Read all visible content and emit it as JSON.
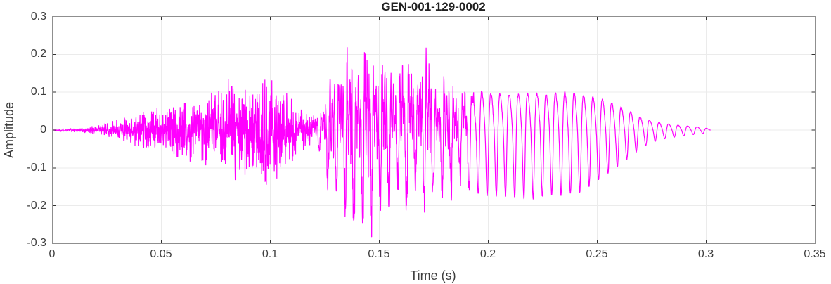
{
  "figure": {
    "background_color": "#ffffff"
  },
  "chart_data": {
    "type": "line",
    "title": "GEN-001-129-0002",
    "xlabel": "Time (s)",
    "ylabel": "Amplitude",
    "xlim": [
      0,
      0.35
    ],
    "ylim": [
      -0.3,
      0.3
    ],
    "xticks": [
      0,
      0.05,
      0.1,
      0.15,
      0.2,
      0.25,
      0.3,
      0.35
    ],
    "xtick_labels": [
      "0",
      "0.05",
      "0.1",
      "0.15",
      "0.2",
      "0.25",
      "0.3",
      "0.35"
    ],
    "yticks": [
      -0.3,
      -0.2,
      -0.1,
      0,
      0.1,
      0.2,
      0.3
    ],
    "ytick_labels": [
      "-0.3",
      "-0.2",
      "-0.1",
      "0",
      "0.1",
      "0.2",
      "0.3"
    ],
    "grid": true,
    "legend": "none",
    "line_color": "#FF00FF",
    "grid_color": "#ebebeb",
    "axis_box_color": "#8f8f8f",
    "tick_mark_color": "#333333",
    "text_color": "#3d3d3d",
    "title_color": "#212121",
    "series": [
      {
        "name": "audio-waveform",
        "color": "#FF00FF"
      }
    ],
    "signal": {
      "kind": "speech-audio-waveform",
      "t_start": 0.0,
      "t_end": 0.302,
      "sample_dt": 0.0001,
      "peak_positive": 0.29,
      "peak_positive_t": 0.147,
      "peak_negative": -0.295,
      "peak_negative_t": 0.141,
      "segments": [
        {
          "type": "noise-fricative",
          "t0": 0.0,
          "t1": 0.1205
        },
        {
          "type": "voiced-peaky",
          "t0": 0.1205,
          "t1": 0.19
        },
        {
          "type": "voiced-smooth",
          "t0": 0.19,
          "t1": 0.302
        }
      ],
      "f0_points": [
        [
          0.0,
          250
        ],
        [
          0.125,
          252
        ],
        [
          0.16,
          248
        ],
        [
          0.19,
          242
        ],
        [
          0.23,
          234
        ],
        [
          0.27,
          230
        ],
        [
          0.302,
          228
        ]
      ],
      "envelope": [
        [
          0.0,
          0.004,
          -0.004
        ],
        [
          0.01,
          0.006,
          -0.006
        ],
        [
          0.02,
          0.012,
          -0.012
        ],
        [
          0.03,
          0.028,
          -0.026
        ],
        [
          0.04,
          0.05,
          -0.048
        ],
        [
          0.05,
          0.062,
          -0.06
        ],
        [
          0.06,
          0.08,
          -0.078
        ],
        [
          0.07,
          0.095,
          -0.095
        ],
        [
          0.078,
          0.105,
          -0.105
        ],
        [
          0.083,
          0.185,
          -0.13
        ],
        [
          0.086,
          0.115,
          -0.195
        ],
        [
          0.09,
          0.11,
          -0.12
        ],
        [
          0.095,
          0.145,
          -0.135
        ],
        [
          0.1,
          0.135,
          -0.15
        ],
        [
          0.105,
          0.11,
          -0.115
        ],
        [
          0.11,
          0.09,
          -0.095
        ],
        [
          0.115,
          0.06,
          -0.065
        ],
        [
          0.12,
          0.038,
          -0.042
        ],
        [
          0.1235,
          0.075,
          -0.085
        ],
        [
          0.127,
          0.16,
          -0.17
        ],
        [
          0.131,
          0.21,
          -0.215
        ],
        [
          0.136,
          0.23,
          -0.25
        ],
        [
          0.141,
          0.275,
          -0.295
        ],
        [
          0.144,
          0.285,
          -0.29
        ],
        [
          0.147,
          0.29,
          -0.265
        ],
        [
          0.151,
          0.245,
          -0.225
        ],
        [
          0.156,
          0.2,
          -0.19
        ],
        [
          0.161,
          0.225,
          -0.205
        ],
        [
          0.166,
          0.24,
          -0.195
        ],
        [
          0.171,
          0.225,
          -0.22
        ],
        [
          0.176,
          0.185,
          -0.205
        ],
        [
          0.181,
          0.17,
          -0.185
        ],
        [
          0.186,
          0.16,
          -0.17
        ],
        [
          0.191,
          0.152,
          -0.162
        ],
        [
          0.196,
          0.14,
          -0.158
        ],
        [
          0.2,
          0.132,
          -0.155
        ],
        [
          0.21,
          0.126,
          -0.16
        ],
        [
          0.22,
          0.13,
          -0.165
        ],
        [
          0.23,
          0.13,
          -0.158
        ],
        [
          0.236,
          0.135,
          -0.155
        ],
        [
          0.242,
          0.128,
          -0.148
        ],
        [
          0.25,
          0.115,
          -0.122
        ],
        [
          0.258,
          0.095,
          -0.095
        ],
        [
          0.264,
          0.07,
          -0.068
        ],
        [
          0.27,
          0.046,
          -0.044
        ],
        [
          0.276,
          0.03,
          -0.028
        ],
        [
          0.282,
          0.022,
          -0.02
        ],
        [
          0.288,
          0.017,
          -0.015
        ],
        [
          0.294,
          0.013,
          -0.011
        ],
        [
          0.299,
          0.009,
          -0.008
        ],
        [
          0.302,
          0.002,
          -0.002
        ]
      ]
    }
  }
}
